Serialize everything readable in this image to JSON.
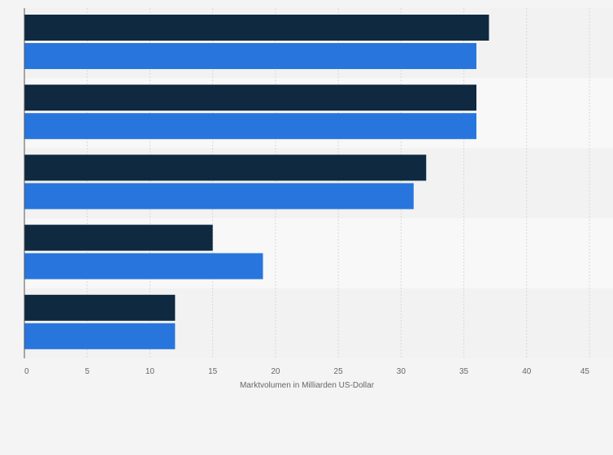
{
  "chart_data": {
    "type": "bar",
    "orientation": "horizontal",
    "categories": [
      "",
      "",
      "",
      "",
      ""
    ],
    "series": [
      {
        "values": [
          37,
          36,
          32,
          15,
          12
        ]
      },
      {
        "values": [
          36,
          36,
          31,
          19,
          12
        ]
      }
    ],
    "xlabel": "Marktvolumen in Milliarden US-Dollar",
    "xlim": [
      0,
      45
    ],
    "xticks": [
      0,
      5,
      10,
      15,
      20,
      25,
      30,
      35,
      40,
      45
    ],
    "grid": true,
    "legend": "none",
    "colors": {
      "series": [
        "#0f2940",
        "#2876dd"
      ],
      "band_dark": "#f2f2f2",
      "band_light": "#f8f8f8",
      "gridline": "#d8d8d8",
      "axis": "#555555",
      "tick_text": "#666666"
    }
  }
}
